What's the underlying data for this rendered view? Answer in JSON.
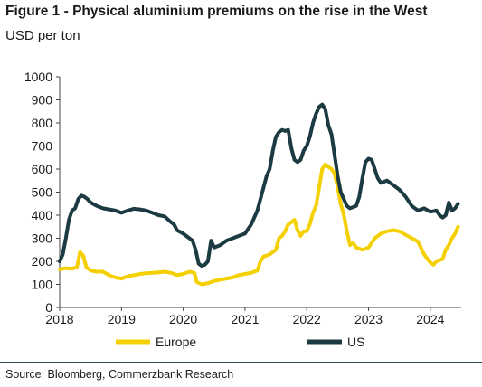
{
  "title": "Figure 1 - Physical aluminium premiums on the rise in the West",
  "subtitle": "USD per ton",
  "source": "Source: Bloomberg, Commerzbank Research",
  "colors": {
    "europe": "#f5d000",
    "us": "#1c3a42",
    "axis": "#444444",
    "text": "#1a1a1a"
  },
  "chart_data": {
    "type": "line",
    "title": "Physical aluminium premiums on the rise in the West",
    "xlabel": "",
    "ylabel": "USD per ton",
    "xlim": [
      2018.0,
      2024.5
    ],
    "ylim": [
      0,
      1000
    ],
    "y_ticks": [
      0,
      100,
      200,
      300,
      400,
      500,
      600,
      700,
      800,
      900,
      1000
    ],
    "x_ticks": [
      "2018",
      "2019",
      "2020",
      "2021",
      "2022",
      "2023",
      "2024"
    ],
    "grid": false,
    "legend_position": "bottom",
    "series": [
      {
        "name": "Europe",
        "color": "#f5d000",
        "points": [
          [
            2018.0,
            165
          ],
          [
            2018.1,
            170
          ],
          [
            2018.2,
            168
          ],
          [
            2018.28,
            175
          ],
          [
            2018.33,
            240
          ],
          [
            2018.38,
            225
          ],
          [
            2018.43,
            175
          ],
          [
            2018.5,
            160
          ],
          [
            2018.6,
            155
          ],
          [
            2018.7,
            155
          ],
          [
            2018.8,
            140
          ],
          [
            2018.9,
            130
          ],
          [
            2019.0,
            125
          ],
          [
            2019.1,
            135
          ],
          [
            2019.2,
            140
          ],
          [
            2019.3,
            145
          ],
          [
            2019.4,
            148
          ],
          [
            2019.5,
            150
          ],
          [
            2019.6,
            152
          ],
          [
            2019.7,
            155
          ],
          [
            2019.8,
            150
          ],
          [
            2019.9,
            140
          ],
          [
            2020.0,
            145
          ],
          [
            2020.1,
            155
          ],
          [
            2020.18,
            150
          ],
          [
            2020.22,
            110
          ],
          [
            2020.3,
            100
          ],
          [
            2020.4,
            105
          ],
          [
            2020.5,
            115
          ],
          [
            2020.6,
            120
          ],
          [
            2020.7,
            125
          ],
          [
            2020.8,
            130
          ],
          [
            2020.9,
            140
          ],
          [
            2021.0,
            145
          ],
          [
            2021.1,
            150
          ],
          [
            2021.2,
            160
          ],
          [
            2021.25,
            200
          ],
          [
            2021.3,
            220
          ],
          [
            2021.4,
            230
          ],
          [
            2021.5,
            250
          ],
          [
            2021.55,
            300
          ],
          [
            2021.6,
            310
          ],
          [
            2021.65,
            330
          ],
          [
            2021.7,
            360
          ],
          [
            2021.75,
            370
          ],
          [
            2021.8,
            380
          ],
          [
            2021.85,
            335
          ],
          [
            2021.9,
            310
          ],
          [
            2021.95,
            330
          ],
          [
            2022.0,
            330
          ],
          [
            2022.05,
            360
          ],
          [
            2022.1,
            410
          ],
          [
            2022.15,
            440
          ],
          [
            2022.2,
            520
          ],
          [
            2022.25,
            600
          ],
          [
            2022.3,
            620
          ],
          [
            2022.35,
            610
          ],
          [
            2022.4,
            600
          ],
          [
            2022.45,
            580
          ],
          [
            2022.5,
            520
          ],
          [
            2022.55,
            450
          ],
          [
            2022.6,
            400
          ],
          [
            2022.65,
            330
          ],
          [
            2022.7,
            270
          ],
          [
            2022.75,
            280
          ],
          [
            2022.8,
            260
          ],
          [
            2022.9,
            250
          ],
          [
            2023.0,
            260
          ],
          [
            2023.1,
            300
          ],
          [
            2023.2,
            320
          ],
          [
            2023.3,
            330
          ],
          [
            2023.4,
            335
          ],
          [
            2023.5,
            330
          ],
          [
            2023.6,
            315
          ],
          [
            2023.7,
            300
          ],
          [
            2023.8,
            285
          ],
          [
            2023.9,
            230
          ],
          [
            2024.0,
            195
          ],
          [
            2024.05,
            185
          ],
          [
            2024.1,
            200
          ],
          [
            2024.2,
            210
          ],
          [
            2024.25,
            250
          ],
          [
            2024.3,
            270
          ],
          [
            2024.35,
            300
          ],
          [
            2024.4,
            320
          ],
          [
            2024.45,
            350
          ]
        ]
      },
      {
        "name": "US",
        "color": "#1c3a42",
        "points": [
          [
            2018.0,
            200
          ],
          [
            2018.05,
            230
          ],
          [
            2018.1,
            300
          ],
          [
            2018.15,
            380
          ],
          [
            2018.2,
            420
          ],
          [
            2018.25,
            430
          ],
          [
            2018.3,
            470
          ],
          [
            2018.35,
            485
          ],
          [
            2018.4,
            480
          ],
          [
            2018.45,
            470
          ],
          [
            2018.5,
            455
          ],
          [
            2018.6,
            440
          ],
          [
            2018.7,
            430
          ],
          [
            2018.8,
            425
          ],
          [
            2018.9,
            420
          ],
          [
            2019.0,
            410
          ],
          [
            2019.1,
            420
          ],
          [
            2019.2,
            428
          ],
          [
            2019.3,
            425
          ],
          [
            2019.4,
            420
          ],
          [
            2019.5,
            410
          ],
          [
            2019.6,
            400
          ],
          [
            2019.7,
            395
          ],
          [
            2019.8,
            370
          ],
          [
            2019.85,
            360
          ],
          [
            2019.9,
            335
          ],
          [
            2020.0,
            320
          ],
          [
            2020.1,
            300
          ],
          [
            2020.15,
            290
          ],
          [
            2020.2,
            250
          ],
          [
            2020.25,
            190
          ],
          [
            2020.3,
            180
          ],
          [
            2020.35,
            185
          ],
          [
            2020.4,
            200
          ],
          [
            2020.45,
            290
          ],
          [
            2020.5,
            260
          ],
          [
            2020.6,
            270
          ],
          [
            2020.7,
            290
          ],
          [
            2020.8,
            300
          ],
          [
            2020.9,
            310
          ],
          [
            2021.0,
            320
          ],
          [
            2021.1,
            360
          ],
          [
            2021.15,
            390
          ],
          [
            2021.2,
            420
          ],
          [
            2021.25,
            470
          ],
          [
            2021.3,
            520
          ],
          [
            2021.35,
            570
          ],
          [
            2021.4,
            600
          ],
          [
            2021.45,
            680
          ],
          [
            2021.5,
            740
          ],
          [
            2021.55,
            760
          ],
          [
            2021.6,
            770
          ],
          [
            2021.65,
            765
          ],
          [
            2021.7,
            770
          ],
          [
            2021.75,
            690
          ],
          [
            2021.8,
            640
          ],
          [
            2021.85,
            630
          ],
          [
            2021.9,
            640
          ],
          [
            2021.95,
            680
          ],
          [
            2022.0,
            700
          ],
          [
            2022.05,
            740
          ],
          [
            2022.1,
            800
          ],
          [
            2022.15,
            840
          ],
          [
            2022.2,
            870
          ],
          [
            2022.25,
            880
          ],
          [
            2022.3,
            860
          ],
          [
            2022.35,
            790
          ],
          [
            2022.4,
            750
          ],
          [
            2022.45,
            660
          ],
          [
            2022.5,
            570
          ],
          [
            2022.55,
            500
          ],
          [
            2022.6,
            470
          ],
          [
            2022.65,
            440
          ],
          [
            2022.7,
            430
          ],
          [
            2022.8,
            440
          ],
          [
            2022.85,
            480
          ],
          [
            2022.9,
            560
          ],
          [
            2022.95,
            630
          ],
          [
            2023.0,
            645
          ],
          [
            2023.05,
            640
          ],
          [
            2023.1,
            600
          ],
          [
            2023.15,
            560
          ],
          [
            2023.2,
            540
          ],
          [
            2023.3,
            550
          ],
          [
            2023.4,
            530
          ],
          [
            2023.5,
            510
          ],
          [
            2023.6,
            480
          ],
          [
            2023.7,
            440
          ],
          [
            2023.8,
            420
          ],
          [
            2023.9,
            430
          ],
          [
            2024.0,
            415
          ],
          [
            2024.1,
            420
          ],
          [
            2024.15,
            400
          ],
          [
            2024.2,
            390
          ],
          [
            2024.25,
            400
          ],
          [
            2024.3,
            455
          ],
          [
            2024.35,
            420
          ],
          [
            2024.4,
            430
          ],
          [
            2024.45,
            450
          ]
        ]
      }
    ]
  }
}
